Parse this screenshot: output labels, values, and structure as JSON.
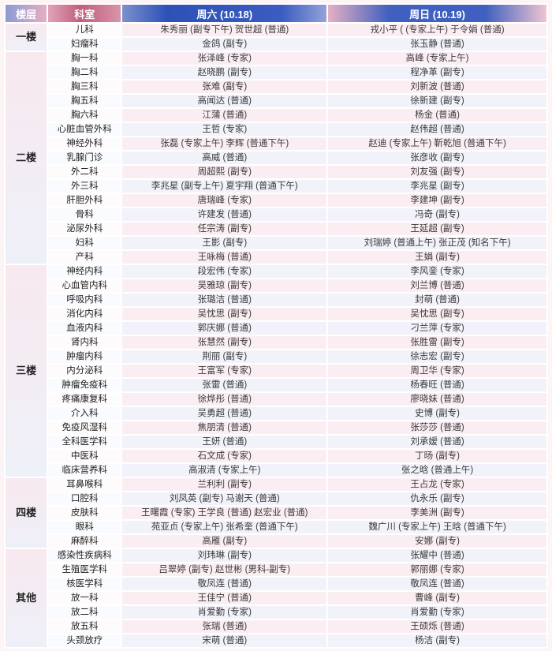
{
  "header": {
    "floor": "楼层",
    "dept": "科室",
    "sat": "周六 (10.18)",
    "sun": "周日 (10.19)"
  },
  "accent_colors": {
    "header_blue": "#3558bc",
    "header_pink": "#c25d7b",
    "row_pink": "#fbeef2",
    "row_lavender": "#f1f2fa"
  },
  "groups": [
    {
      "floor": "一楼",
      "rows": [
        {
          "dept": "儿科",
          "sat": "朱秀丽 (副专下午) 贺世超 (普通)",
          "sun": "戎小平 ( (专家上午) 于令娟 (普通)"
        },
        {
          "dept": "妇瘤科",
          "sat": "金鸽 (副专)",
          "sun": "张玉静 (普通)"
        }
      ]
    },
    {
      "floor": "二楼",
      "rows": [
        {
          "dept": "胸一科",
          "sat": "张泽峰 (专家)",
          "sun": "高峰 (专家上午)"
        },
        {
          "dept": "胸二科",
          "sat": "赵晓鹏 (副专)",
          "sun": "程净革 (副专)"
        },
        {
          "dept": "胸三科",
          "sat": "张难 (副专)",
          "sun": "刘新波 (普通)"
        },
        {
          "dept": "胸五科",
          "sat": "高闻达 (普通)",
          "sun": "徐新建 (副专)"
        },
        {
          "dept": "胸六科",
          "sat": "江蒲 (普通)",
          "sun": "杨金 (普通)"
        },
        {
          "dept": "心脏血管外科",
          "sat": "王哲 (专家)",
          "sun": "赵伟超 (普通)"
        },
        {
          "dept": "神经外科",
          "sat": "张磊 (专家上午) 李辉 (普通下午)",
          "sun": "赵迪 (专家上午) 靳乾旭 (普通下午)"
        },
        {
          "dept": "乳腺门诊",
          "sat": "高威 (普通)",
          "sun": "张彦收 (副专)"
        },
        {
          "dept": "外二科",
          "sat": "周超熙 (副专)",
          "sun": "刘友强 (副专)"
        },
        {
          "dept": "外三科",
          "sat": "李兆星 (副专上午) 夏宇翔 (普通下午)",
          "sun": "李兆星 (副专)"
        },
        {
          "dept": "肝胆外科",
          "sat": "唐瑞峰 (专家)",
          "sun": "李建坤 (副专)"
        },
        {
          "dept": "骨科",
          "sat": "许建发 (普通)",
          "sun": "冯奇 (副专)"
        },
        {
          "dept": "泌尿外科",
          "sat": "任宗涛 (副专)",
          "sun": "王延超 (副专)"
        },
        {
          "dept": "妇科",
          "sat": "王影 (副专)",
          "sun": "刘瑞婷 (普通上午) 张正茂 (知名下午)"
        },
        {
          "dept": "产科",
          "sat": "王咏梅 (普通)",
          "sun": "王娟 (副专)"
        }
      ]
    },
    {
      "floor": "三楼",
      "rows": [
        {
          "dept": "神经内科",
          "sat": "段宏伟 (专家)",
          "sun": "李风銮 (专家)"
        },
        {
          "dept": "心血管内科",
          "sat": "吴雅琼 (副专)",
          "sun": "刘兰博 (普通)"
        },
        {
          "dept": "呼吸内科",
          "sat": "张璐洁 (普通)",
          "sun": "封萌 (普通)"
        },
        {
          "dept": "消化内科",
          "sat": "吴忱思 (副专)",
          "sun": "吴忱思 (副专)"
        },
        {
          "dept": "血液内科",
          "sat": "郭庆娜 (普通)",
          "sun": "刁兰萍 (专家)"
        },
        {
          "dept": "肾内科",
          "sat": "张慧然 (副专)",
          "sun": "张胜雷 (副专)"
        },
        {
          "dept": "肿瘤内科",
          "sat": "荆丽 (副专)",
          "sun": "徐志宏 (副专)"
        },
        {
          "dept": "内分泌科",
          "sat": "王富军 (专家)",
          "sun": "周卫华 (专家)"
        },
        {
          "dept": "肿瘤免疫科",
          "sat": "张雷 (普通)",
          "sun": "杨春旺 (普通)"
        },
        {
          "dept": "疼痛康复科",
          "sat": "徐烨彤 (普通)",
          "sun": "廖晓妹 (普通)"
        },
        {
          "dept": "介入科",
          "sat": "吴勇超 (普通)",
          "sun": "史博 (副专)"
        },
        {
          "dept": "免疫风湿科",
          "sat": "焦朋清 (普通)",
          "sun": "张莎莎 (普通)"
        },
        {
          "dept": "全科医学科",
          "sat": "王妍 (普通)",
          "sun": "刘承嫒 (普通)"
        },
        {
          "dept": "中医科",
          "sat": "石文成 (专家)",
          "sun": "丁旸 (副专)"
        },
        {
          "dept": "临床营养科",
          "sat": "高淑清 (专家上午)",
          "sun": "张之晗 (普通上午)"
        }
      ]
    },
    {
      "floor": "四楼",
      "rows": [
        {
          "dept": "耳鼻喉科",
          "sat": "兰利利 (副专)",
          "sun": "王占龙 (专家)"
        },
        {
          "dept": "口腔科",
          "sat": "刘凤英 (副专) 马谢天 (普通)",
          "sun": "仇永乐 (副专)"
        },
        {
          "dept": "皮肤科",
          "sat": "王曙霞 (专家) 王学良 (普通) 赵宏业 (普通)",
          "sun": "李美洲 (副专)"
        },
        {
          "dept": "眼科",
          "sat": "苑亚贞 (专家上午) 张希奎 (普通下午)",
          "sun": "魏广川 (专家上午) 王晗 (普通下午)"
        },
        {
          "dept": "麻醉科",
          "sat": "高雁 (副专)",
          "sun": "安娜 (副专)"
        }
      ]
    },
    {
      "floor": "其他",
      "rows": [
        {
          "dept": "感染性疾病科",
          "sat": "刘玮琳 (副专)",
          "sun": "张耀中 (普通)"
        },
        {
          "dept": "生殖医学科",
          "sat": "吕翠婷 (副专) 赵世彬 (男科-副专)",
          "sun": "郭丽娜 (专家)"
        },
        {
          "dept": "核医学科",
          "sat": "敬凤连 (普通)",
          "sun": "敬凤连 (普通)"
        },
        {
          "dept": "放一科",
          "sat": "王佳宁 (普通)",
          "sun": "曹峰 (副专)"
        },
        {
          "dept": "放二科",
          "sat": "肖爱勤 (专家)",
          "sun": "肖爱勤 (专家)"
        },
        {
          "dept": "放五科",
          "sat": "张瑞 (普通)",
          "sun": "王硕烁 (普通)"
        },
        {
          "dept": "头颈放疗",
          "sat": "宋萌 (普通)",
          "sun": "杨洁 (副专)"
        }
      ]
    }
  ]
}
